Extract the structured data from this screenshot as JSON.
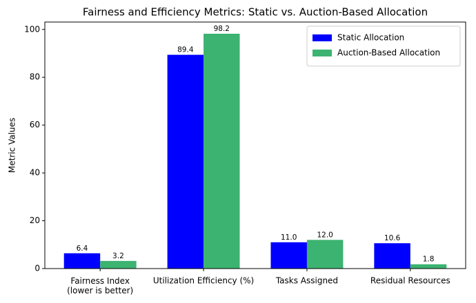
{
  "chart_data": {
    "type": "bar",
    "title": "Fairness and Efficiency Metrics: Static vs. Auction-Based Allocation",
    "y_label": "Metric Values",
    "categories": [
      "Fairness Index\n(lower is better)",
      "Utilization Efficiency (%)",
      "Tasks Assigned",
      "Residual Resources"
    ],
    "series": [
      {
        "name": "Static Allocation",
        "color": "#0000ff",
        "values": [
          6.4,
          89.4,
          11.0,
          10.6
        ],
        "value_labels": [
          "6.4",
          "89.4",
          "11.0",
          "10.6"
        ]
      },
      {
        "name": "Auction-Based Allocation",
        "color": "#3cb371",
        "values": [
          3.2,
          98.2,
          12.0,
          1.8
        ],
        "value_labels": [
          "3.2",
          "98.2",
          "12.0",
          "1.8"
        ]
      }
    ],
    "ylim": [
      0,
      103.1
    ],
    "yticks": [
      0,
      20,
      40,
      60,
      80,
      100
    ],
    "legend": "upper right"
  }
}
